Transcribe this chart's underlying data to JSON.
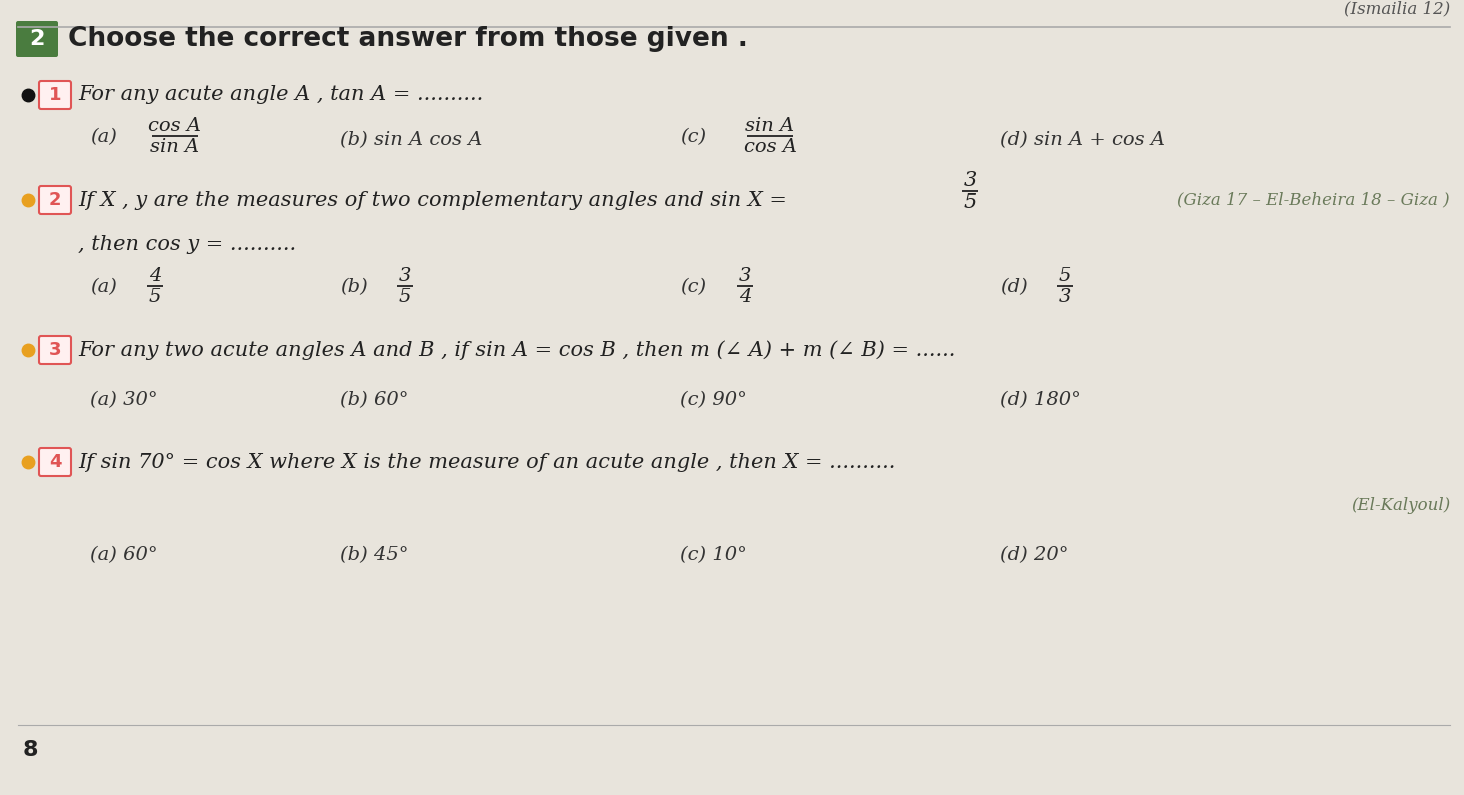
{
  "bg_color": "#e8e4dc",
  "page_color": "#f5f3ee",
  "title": "Choose the correct answer from those given .",
  "section_num": "2",
  "section_box_color": "#4a7c3f",
  "top_right_text": "(Ismailia 12)",
  "bottom_left_num": "8",
  "q_box_border": "#e05555",
  "q_box_fill": "#fff0f0",
  "text_color": "#222222",
  "italic_color": "#333333",
  "side_text_color": "#6a7a5a",
  "bullet_black": "#111111",
  "bullet_orange": "#e8a020",
  "font_size_title": 19,
  "font_size_q": 15,
  "font_size_opt": 14,
  "font_size_side": 12,
  "q1": {
    "text": "For any acute angle A , tan A = ..........",
    "opt_a_num": "cos A",
    "opt_a_den": "sin A",
    "opt_b": "sin A cos A",
    "opt_c_num": "sin A",
    "opt_c_den": "cos A",
    "opt_d": "sin A + cos A"
  },
  "q2": {
    "text1": "If X , y are the measures of two complementary angles and sin X = ",
    "frac_num": "3",
    "frac_den": "5",
    "text2": ", then cos y = ..........",
    "side": "(Giza 17 – El-Beheira 18 – Giza )",
    "opt_a_num": "4",
    "opt_a_den": "5",
    "opt_b_num": "3",
    "opt_b_den": "5",
    "opt_c_num": "3",
    "opt_c_den": "4",
    "opt_d_num": "5",
    "opt_d_den": "3"
  },
  "q3": {
    "text": "For any two acute angles A and B , if sin A = cos B , then m (∠ A) + m (∠ B) = ......",
    "opt_a": "30°",
    "opt_b": "60°",
    "opt_c": "90°",
    "opt_d": "180°"
  },
  "q4": {
    "text": "If sin 70° = cos X where X is the measure of an acute angle , then X = ..........",
    "side": "(El-Kalyoul)",
    "opt_a": "60°",
    "opt_b": "45°",
    "opt_c": "10°",
    "opt_d": "20°"
  }
}
